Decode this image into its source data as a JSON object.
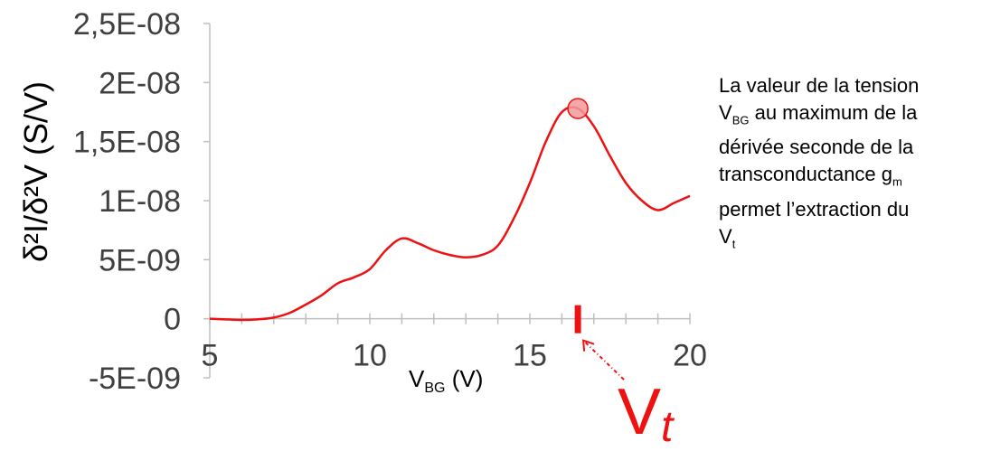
{
  "chart_data": {
    "type": "line",
    "x": [
      5,
      5.5,
      6,
      6.5,
      7,
      7.5,
      8,
      8.5,
      9,
      9.5,
      10,
      10.5,
      11,
      11.5,
      12,
      12.5,
      13,
      13.5,
      14,
      14.5,
      15,
      15.5,
      16,
      16.5,
      17,
      17.5,
      18,
      18.5,
      19,
      19.5,
      20
    ],
    "y": [
      0,
      -5e-11,
      -1e-10,
      -5e-11,
      1e-10,
      5e-10,
      1.2e-09,
      2e-09,
      3e-09,
      3.5e-09,
      4.2e-09,
      5.8e-09,
      6.8e-09,
      6.4e-09,
      5.8e-09,
      5.4e-09,
      5.2e-09,
      5.4e-09,
      6.2e-09,
      8.5e-09,
      1.15e-08,
      1.5e-08,
      1.75e-08,
      1.78e-08,
      1.63e-08,
      1.38e-08,
      1.15e-08,
      1e-08,
      9.2e-09,
      9.8e-09,
      1.04e-08
    ],
    "ylim": [
      -5e-09,
      2.5e-08
    ],
    "xlim": [
      5,
      20
    ],
    "y_ticks": [
      -5e-09,
      0,
      5e-09,
      1e-08,
      1.5e-08,
      2e-08,
      2.5e-08
    ],
    "y_tick_labels": [
      "-5E-09",
      "0",
      "5E-09",
      "1E-08",
      "1,5E-08",
      "2E-08",
      "2,5E-08"
    ],
    "x_ticks": [
      5,
      10,
      15,
      20
    ],
    "x_tick_labels": [
      "5",
      "10",
      "15",
      "20"
    ],
    "ylabel": "δ²I/δ²V (S/V)",
    "xlabel": {
      "main": "V",
      "sub": "BG",
      "unit": " (V)"
    },
    "line_color": "#ee1111",
    "maximum": {
      "x": 16.5,
      "y": 1.78e-08
    },
    "vt": {
      "x": 16.5,
      "label_main": "V",
      "label_sub": "t"
    },
    "grid": false,
    "legend": "none"
  },
  "annotation": {
    "line1": "La valeur de la tension",
    "line2_main": "V",
    "line2_sub": "BG",
    "line2_rest": "  au maximum de la",
    "line3": "dérivée seconde de la",
    "line4_main": "transconductance g",
    "line4_sub": "m",
    "line5": "permet l’extraction du",
    "line6_main": "V",
    "line6_sub": "t"
  }
}
